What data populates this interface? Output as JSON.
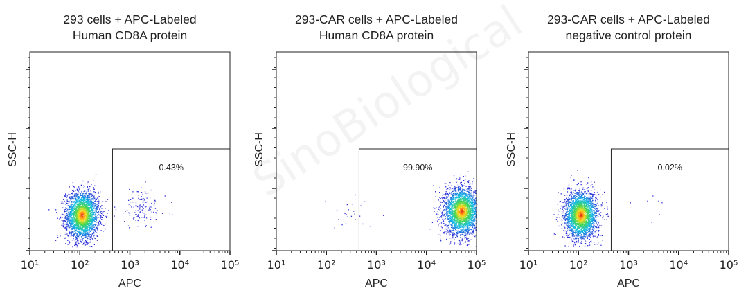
{
  "watermark": "SinoBiological",
  "chart_data": [
    {
      "type": "scatter",
      "title": "293 cells + APC-Labeled\nHuman CD8A protein",
      "xlabel": "APC",
      "ylabel": "SSC-H",
      "x_scale": "log",
      "xlim": [
        10,
        100000
      ],
      "x_ticks": [
        "10¹",
        "10²",
        "10³",
        "10⁴",
        "10⁵"
      ],
      "gate": {
        "x_min": 450,
        "x_max": 100000,
        "label": "0.43%",
        "percent": 0.43
      },
      "populations": [
        {
          "center_x": 110,
          "spread_log_x": 0.3,
          "center_y_frac": 0.18,
          "spread_y_frac": 0.06,
          "count": 2600,
          "color_map": "density"
        },
        {
          "center_x": 1700,
          "spread_log_x": 0.45,
          "center_y_frac": 0.22,
          "spread_y_frac": 0.05,
          "count": 130,
          "color": "#2f2fd8"
        }
      ],
      "grid": false,
      "legend": "none"
    },
    {
      "type": "scatter",
      "title": "293-CAR cells + APC-Labeled\nHuman CD8A protein",
      "xlabel": "APC",
      "ylabel": "SSC-H",
      "x_scale": "log",
      "xlim": [
        10,
        100000
      ],
      "x_ticks": [
        "10¹",
        "10²",
        "10³",
        "10⁴",
        "10⁵"
      ],
      "gate": {
        "x_min": 450,
        "x_max": 100000,
        "label": "99.90%",
        "percent": 99.9
      },
      "populations": [
        {
          "center_x": 50000,
          "spread_log_x": 0.32,
          "center_y_frac": 0.2,
          "spread_y_frac": 0.06,
          "count": 2600,
          "color_map": "density"
        },
        {
          "center_x": 300,
          "spread_log_x": 0.45,
          "center_y_frac": 0.18,
          "spread_y_frac": 0.05,
          "count": 25,
          "color": "#2f2fd8"
        }
      ],
      "grid": false,
      "legend": "none"
    },
    {
      "type": "scatter",
      "title": "293-CAR cells + APC-Labeled\nnegative control protein",
      "xlabel": "APC",
      "ylabel": "SSC-H",
      "x_scale": "log",
      "xlim": [
        10,
        100000
      ],
      "x_ticks": [
        "10¹",
        "10²",
        "10³",
        "10⁴",
        "10⁵"
      ],
      "gate": {
        "x_min": 450,
        "x_max": 100000,
        "label": "0.02%",
        "percent": 0.02
      },
      "populations": [
        {
          "center_x": 110,
          "spread_log_x": 0.3,
          "center_y_frac": 0.18,
          "spread_y_frac": 0.06,
          "count": 2600,
          "color_map": "density"
        },
        {
          "center_x": 4000,
          "spread_log_x": 0.6,
          "center_y_frac": 0.22,
          "spread_y_frac": 0.04,
          "count": 7,
          "color": "#2f2fd8"
        }
      ],
      "grid": false,
      "legend": "none"
    }
  ]
}
